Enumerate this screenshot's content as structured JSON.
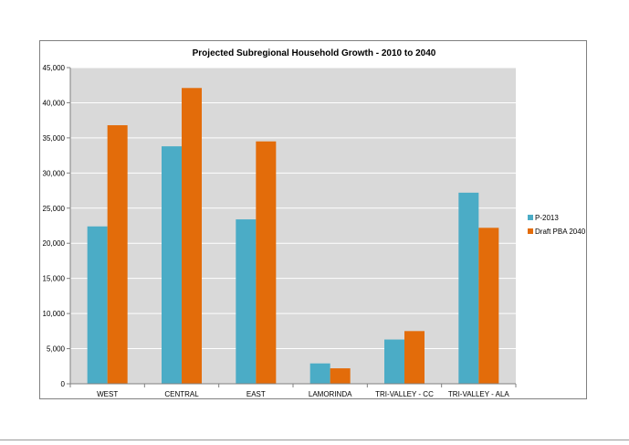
{
  "chart_data": {
    "type": "bar",
    "title": "Projected Subregional Household Growth - 2010 to 2040",
    "xlabel": "",
    "ylabel": "",
    "categories": [
      "WEST",
      "CENTRAL",
      "EAST",
      "LAMORINDA",
      "TRI-VALLEY - CC",
      "TRI-VALLEY - ALA"
    ],
    "series": [
      {
        "name": "P-2013",
        "color": "#4bacc6",
        "values": [
          22400,
          33800,
          23400,
          2900,
          6300,
          27200
        ]
      },
      {
        "name": "Draft PBA 2040",
        "color": "#e36c0a",
        "values": [
          36800,
          42100,
          34500,
          2200,
          7500,
          22200
        ]
      }
    ],
    "ylim": [
      0,
      45000
    ],
    "yticks": [
      0,
      5000,
      10000,
      15000,
      20000,
      25000,
      30000,
      35000,
      40000,
      45000
    ],
    "ytick_labels": [
      "0",
      "5,000",
      "10,000",
      "15,000",
      "20,000",
      "25,000",
      "30,000",
      "35,000",
      "40,000",
      "45,000"
    ],
    "grid": true,
    "plot_background": "#d9d9d9",
    "legend_position": "right"
  }
}
